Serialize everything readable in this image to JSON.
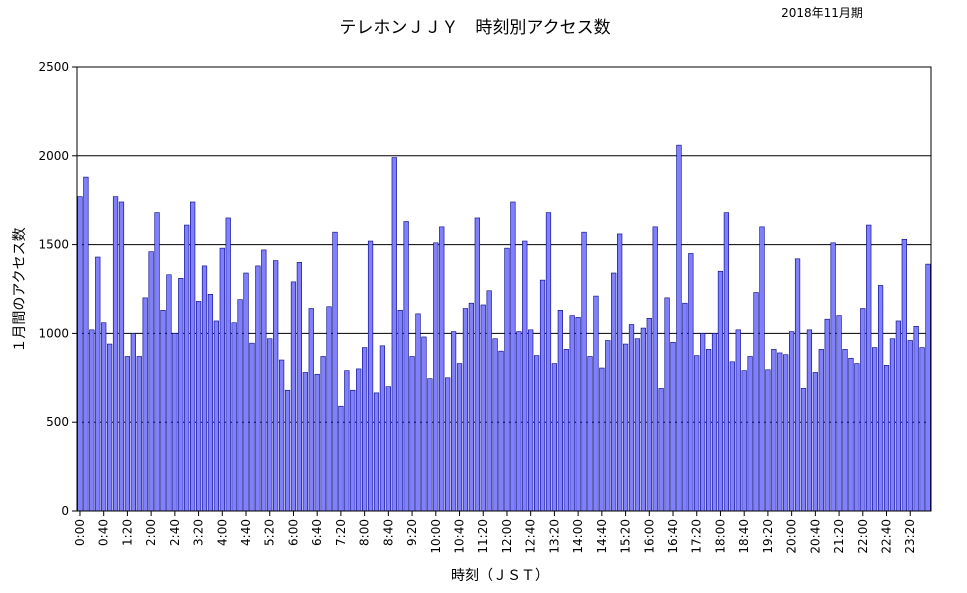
{
  "chart_data": {
    "type": "bar",
    "title": "テレホンＪＪＹ　時刻別アクセス数",
    "subtitle": "2018年11月期",
    "xlabel": "時刻（ＪＳＴ）",
    "ylabel": "１月間のアクセス数",
    "ylim": [
      0,
      2500
    ],
    "yticks": [
      0,
      500,
      1000,
      1500,
      2000,
      2500
    ],
    "grid": "horizontal",
    "bar_color": "#8080ff",
    "bar_stroke": "#000080",
    "tick_labels": [
      "0:00",
      "0:40",
      "1:20",
      "2:00",
      "2:40",
      "3:20",
      "4:00",
      "4:40",
      "5:20",
      "6:00",
      "6:40",
      "7:20",
      "8:00",
      "8:40",
      "9:20",
      "10:00",
      "10:40",
      "11:20",
      "12:00",
      "12:40",
      "13:20",
      "14:00",
      "14:40",
      "15:20",
      "16:00",
      "16:40",
      "17:20",
      "18:00",
      "18:40",
      "19:20",
      "20:00",
      "20:40",
      "21:20",
      "22:00",
      "22:40",
      "23:20"
    ],
    "categories": [
      "0:00",
      "0:10",
      "0:20",
      "0:30",
      "0:40",
      "0:50",
      "1:00",
      "1:10",
      "1:20",
      "1:30",
      "1:40",
      "1:50",
      "2:00",
      "2:10",
      "2:20",
      "2:30",
      "2:40",
      "2:50",
      "3:00",
      "3:10",
      "3:20",
      "3:30",
      "3:40",
      "3:50",
      "4:00",
      "4:10",
      "4:20",
      "4:30",
      "4:40",
      "4:50",
      "5:00",
      "5:10",
      "5:20",
      "5:30",
      "5:40",
      "5:50",
      "6:00",
      "6:10",
      "6:20",
      "6:30",
      "6:40",
      "6:50",
      "7:00",
      "7:10",
      "7:20",
      "7:30",
      "7:40",
      "7:50",
      "8:00",
      "8:10",
      "8:20",
      "8:30",
      "8:40",
      "8:50",
      "9:00",
      "9:10",
      "9:20",
      "9:30",
      "9:40",
      "9:50",
      "10:00",
      "10:10",
      "10:20",
      "10:30",
      "10:40",
      "10:50",
      "11:00",
      "11:10",
      "11:20",
      "11:30",
      "11:40",
      "11:50",
      "12:00",
      "12:10",
      "12:20",
      "12:30",
      "12:40",
      "12:50",
      "13:00",
      "13:10",
      "13:20",
      "13:30",
      "13:40",
      "13:50",
      "14:00",
      "14:10",
      "14:20",
      "14:30",
      "14:40",
      "14:50",
      "15:00",
      "15:10",
      "15:20",
      "15:30",
      "15:40",
      "15:50",
      "16:00",
      "16:10",
      "16:20",
      "16:30",
      "16:40",
      "16:50",
      "17:00",
      "17:10",
      "17:20",
      "17:30",
      "17:40",
      "17:50",
      "18:00",
      "18:10",
      "18:20",
      "18:30",
      "18:40",
      "18:50",
      "19:00",
      "19:10",
      "19:20",
      "19:30",
      "19:40",
      "19:50",
      "20:00",
      "20:10",
      "20:20",
      "20:30",
      "20:40",
      "20:50",
      "21:00",
      "21:10",
      "21:20",
      "21:30",
      "21:40",
      "21:50",
      "22:00",
      "22:10",
      "22:20",
      "22:30",
      "22:40",
      "22:50",
      "23:00",
      "23:10",
      "23:20",
      "23:30",
      "23:40",
      "23:50"
    ],
    "values": [
      1770,
      1880,
      1020,
      1430,
      1060,
      940,
      1770,
      1740,
      870,
      1000,
      870,
      1200,
      1460,
      1680,
      1130,
      1330,
      1000,
      1310,
      1610,
      1740,
      1180,
      1380,
      1220,
      1070,
      1480,
      1650,
      1060,
      1190,
      1340,
      945,
      1380,
      1470,
      970,
      1410,
      850,
      680,
      1290,
      1400,
      780,
      1140,
      770,
      870,
      1150,
      1570,
      590,
      790,
      680,
      800,
      920,
      1520,
      665,
      930,
      700,
      1990,
      1130,
      1630,
      870,
      1110,
      980,
      745,
      1510,
      1600,
      750,
      1010,
      830,
      1140,
      1170,
      1650,
      1160,
      1240,
      970,
      900,
      1480,
      1740,
      1010,
      1520,
      1020,
      875,
      1300,
      1680,
      830,
      1130,
      910,
      1100,
      1090,
      1570,
      870,
      1210,
      805,
      960,
      1340,
      1560,
      940,
      1050,
      970,
      1030,
      1085,
      1600,
      690,
      1200,
      950,
      2060,
      1170,
      1450,
      875,
      1000,
      910,
      1000,
      1350,
      1680,
      840,
      1020,
      790,
      870,
      1230,
      1600,
      795,
      910,
      890,
      880,
      1010,
      1420,
      690,
      1020,
      780,
      910,
      1080,
      1510,
      1100,
      910,
      860,
      830,
      1140,
      1610,
      920,
      1270,
      820,
      970,
      1070,
      1530,
      960,
      1040,
      920,
      1390
    ]
  }
}
